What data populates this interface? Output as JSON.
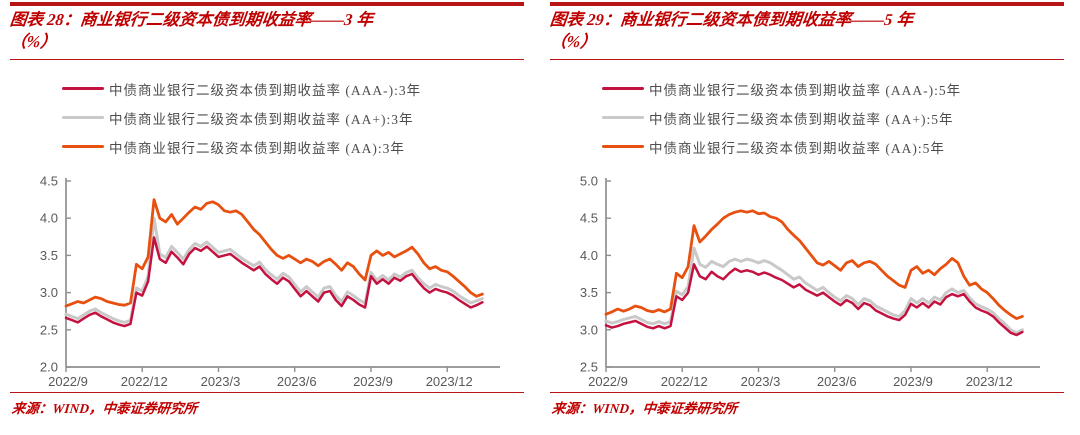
{
  "colors": {
    "accent_red": "#c00000",
    "rule_red": "#b71515",
    "axis_line": "#8f8f8f",
    "axis_text": "#595959"
  },
  "charts": [
    {
      "title": "图表 28：商业银行二级资本债到期收益率——3 年",
      "title_line2": "（%）",
      "source": "来源：WIND，中泰证券研究所",
      "chart_data": {
        "type": "line",
        "x_unit": "weekly samples, Sep 2022 – mid Jan 2024",
        "xtick_labels": [
          "2022/9",
          "2022/12",
          "2023/3",
          "2023/6",
          "2023/9",
          "2023/12"
        ],
        "xtick_indices": [
          0,
          13,
          26,
          39,
          52,
          65
        ],
        "x_index_max": 74,
        "ylim": [
          2.0,
          4.5
        ],
        "yticks": [
          "2.0",
          "2.5",
          "3.0",
          "3.5",
          "4.0",
          "4.5"
        ],
        "grid": false,
        "legend_position": "top-left",
        "series": [
          {
            "name": "中债商业银行二级资本债到期收益率 (AAA-):3年",
            "color": "#c41240",
            "width": 2.5,
            "z": 2,
            "values": [
              2.66,
              2.63,
              2.6,
              2.65,
              2.7,
              2.73,
              2.68,
              2.64,
              2.6,
              2.57,
              2.55,
              2.58,
              3.0,
              2.96,
              3.15,
              3.74,
              3.45,
              3.4,
              3.55,
              3.47,
              3.38,
              3.52,
              3.6,
              3.56,
              3.62,
              3.55,
              3.48,
              3.5,
              3.52,
              3.46,
              3.4,
              3.35,
              3.3,
              3.35,
              3.25,
              3.18,
              3.12,
              3.2,
              3.15,
              3.05,
              2.95,
              3.02,
              2.95,
              2.88,
              3.0,
              3.02,
              2.9,
              2.82,
              2.95,
              2.9,
              2.84,
              2.8,
              3.22,
              3.12,
              3.18,
              3.12,
              3.2,
              3.16,
              3.22,
              3.25,
              3.15,
              3.06,
              3.0,
              3.05,
              3.02,
              3.0,
              2.96,
              2.9,
              2.85,
              2.8,
              2.83,
              2.87
            ]
          },
          {
            "name": "中债商业银行二级资本债到期收益率 (AA+):3年",
            "color": "#c9c9c9",
            "width": 3.0,
            "z": 1,
            "values": [
              2.71,
              2.68,
              2.65,
              2.7,
              2.75,
              2.78,
              2.73,
              2.69,
              2.65,
              2.62,
              2.6,
              2.63,
              3.06,
              3.02,
              3.22,
              4.0,
              3.52,
              3.47,
              3.62,
              3.54,
              3.45,
              3.58,
              3.66,
              3.62,
              3.68,
              3.61,
              3.54,
              3.56,
              3.58,
              3.52,
              3.46,
              3.41,
              3.36,
              3.41,
              3.31,
              3.24,
              3.18,
              3.26,
              3.21,
              3.11,
              3.01,
              3.08,
              3.01,
              2.94,
              3.06,
              3.08,
              2.96,
              2.88,
              3.01,
              2.96,
              2.9,
              2.86,
              3.27,
              3.17,
              3.23,
              3.17,
              3.25,
              3.21,
              3.27,
              3.3,
              3.2,
              3.12,
              3.06,
              3.11,
              3.08,
              3.06,
              3.02,
              2.96,
              2.91,
              2.86,
              2.89,
              2.92
            ]
          },
          {
            "name": "中债商业银行二级资本债到期收益率 (AA):3年",
            "color": "#e8500f",
            "width": 2.8,
            "z": 3,
            "values": [
              2.82,
              2.85,
              2.88,
              2.86,
              2.9,
              2.94,
              2.92,
              2.88,
              2.86,
              2.84,
              2.83,
              2.86,
              3.38,
              3.32,
              3.48,
              4.25,
              4.0,
              3.95,
              4.05,
              3.92,
              4.0,
              4.08,
              4.15,
              4.12,
              4.2,
              4.22,
              4.18,
              4.1,
              4.08,
              4.1,
              4.05,
              3.95,
              3.85,
              3.78,
              3.68,
              3.58,
              3.5,
              3.46,
              3.5,
              3.45,
              3.4,
              3.45,
              3.42,
              3.36,
              3.42,
              3.45,
              3.38,
              3.3,
              3.4,
              3.35,
              3.25,
              3.17,
              3.5,
              3.56,
              3.5,
              3.54,
              3.48,
              3.52,
              3.56,
              3.61,
              3.52,
              3.4,
              3.32,
              3.35,
              3.3,
              3.28,
              3.22,
              3.15,
              3.08,
              3.0,
              2.95,
              2.98
            ]
          }
        ]
      }
    },
    {
      "title": "图表 29：商业银行二级资本债到期收益率——5 年",
      "title_line2": "（%）",
      "source": "来源：WIND，中泰证券研究所",
      "chart_data": {
        "type": "line",
        "x_unit": "weekly samples, Sep 2022 – mid Jan 2024",
        "xtick_labels": [
          "2022/9",
          "2022/12",
          "2023/3",
          "2023/6",
          "2023/9",
          "2023/12"
        ],
        "xtick_indices": [
          0,
          13,
          26,
          39,
          52,
          65
        ],
        "x_index_max": 74,
        "ylim": [
          2.5,
          5.0
        ],
        "yticks": [
          "2.5",
          "3.0",
          "3.5",
          "4.0",
          "4.5",
          "5.0"
        ],
        "grid": false,
        "legend_position": "top-left",
        "series": [
          {
            "name": "中债商业银行二级资本债到期收益率 (AAA-):5年",
            "color": "#c41240",
            "width": 2.5,
            "z": 2,
            "values": [
              3.06,
              3.03,
              3.05,
              3.08,
              3.1,
              3.12,
              3.08,
              3.04,
              3.02,
              3.05,
              3.02,
              3.05,
              3.45,
              3.4,
              3.5,
              3.88,
              3.72,
              3.68,
              3.78,
              3.72,
              3.68,
              3.76,
              3.82,
              3.78,
              3.8,
              3.78,
              3.74,
              3.77,
              3.74,
              3.7,
              3.67,
              3.62,
              3.57,
              3.61,
              3.54,
              3.5,
              3.46,
              3.5,
              3.44,
              3.38,
              3.33,
              3.4,
              3.36,
              3.28,
              3.36,
              3.33,
              3.26,
              3.22,
              3.18,
              3.15,
              3.13,
              3.2,
              3.35,
              3.3,
              3.36,
              3.3,
              3.38,
              3.34,
              3.44,
              3.48,
              3.45,
              3.48,
              3.38,
              3.3,
              3.26,
              3.23,
              3.18,
              3.1,
              3.03,
              2.96,
              2.93,
              2.97
            ]
          },
          {
            "name": "中债商业银行二级资本债到期收益率 (AA+):5年",
            "color": "#c9c9c9",
            "width": 3.0,
            "z": 1,
            "values": [
              3.12,
              3.09,
              3.11,
              3.14,
              3.16,
              3.18,
              3.14,
              3.1,
              3.08,
              3.11,
              3.08,
              3.11,
              3.52,
              3.47,
              3.58,
              4.1,
              3.88,
              3.84,
              3.92,
              3.88,
              3.85,
              3.92,
              3.95,
              3.92,
              3.95,
              3.93,
              3.9,
              3.93,
              3.9,
              3.85,
              3.8,
              3.74,
              3.68,
              3.71,
              3.63,
              3.58,
              3.53,
              3.57,
              3.5,
              3.44,
              3.39,
              3.46,
              3.42,
              3.34,
              3.42,
              3.39,
              3.32,
              3.28,
              3.24,
              3.2,
              3.18,
              3.26,
              3.42,
              3.36,
              3.42,
              3.36,
              3.44,
              3.4,
              3.5,
              3.55,
              3.5,
              3.53,
              3.43,
              3.35,
              3.31,
              3.28,
              3.23,
              3.15,
              3.08,
              3.0,
              2.96,
              3.0
            ]
          },
          {
            "name": "中债商业银行二级资本债到期收益率 (AA):5年",
            "color": "#e8500f",
            "width": 2.8,
            "z": 3,
            "values": [
              3.21,
              3.24,
              3.28,
              3.25,
              3.28,
              3.32,
              3.3,
              3.26,
              3.24,
              3.27,
              3.24,
              3.28,
              3.76,
              3.7,
              3.85,
              4.4,
              4.18,
              4.26,
              4.35,
              4.42,
              4.5,
              4.55,
              4.58,
              4.6,
              4.58,
              4.6,
              4.56,
              4.57,
              4.52,
              4.5,
              4.45,
              4.35,
              4.27,
              4.2,
              4.1,
              4.0,
              3.9,
              3.87,
              3.92,
              3.86,
              3.8,
              3.9,
              3.93,
              3.85,
              3.9,
              3.92,
              3.88,
              3.8,
              3.72,
              3.66,
              3.6,
              3.57,
              3.8,
              3.85,
              3.76,
              3.8,
              3.74,
              3.82,
              3.88,
              3.96,
              3.9,
              3.72,
              3.6,
              3.63,
              3.55,
              3.5,
              3.42,
              3.33,
              3.26,
              3.2,
              3.15,
              3.18
            ]
          }
        ]
      }
    }
  ]
}
